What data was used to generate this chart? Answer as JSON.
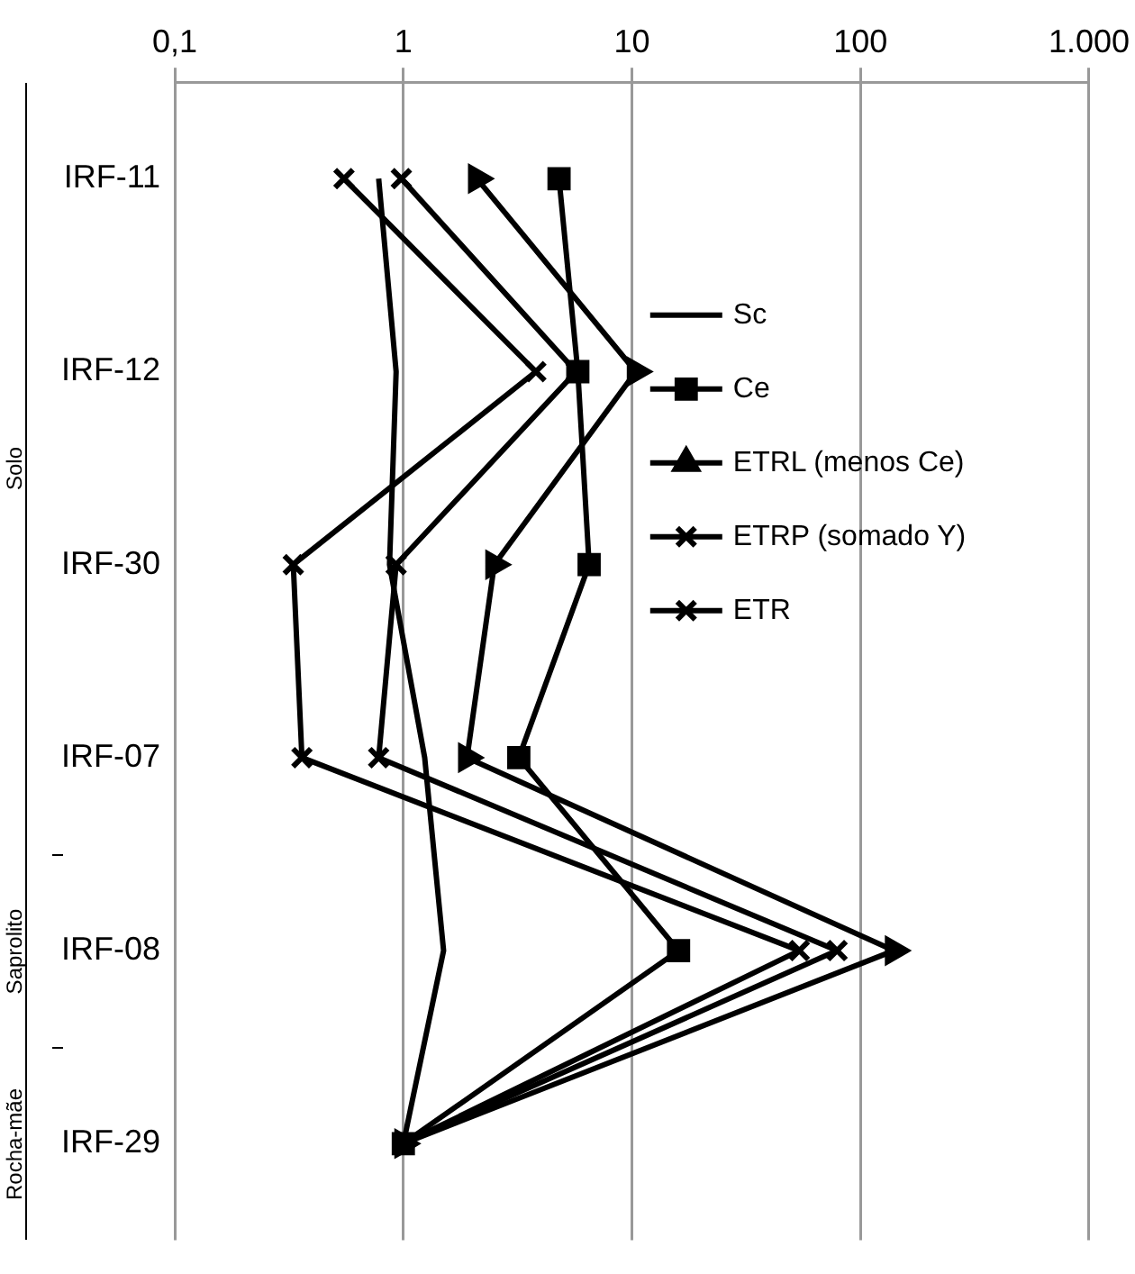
{
  "chart_data": {
    "type": "line",
    "orientation": "horizontal",
    "log": "x",
    "categories": [
      "IRF-11",
      "IRF-12",
      "IRF-30",
      "IRF-07",
      "IRF-08",
      "IRF-29"
    ],
    "xlim": [
      0.1,
      1000
    ],
    "xticks": [
      {
        "value": 0.1,
        "label": "0,1"
      },
      1,
      10,
      100,
      {
        "value": 1000,
        "label": "1.000"
      }
    ],
    "grid": "x",
    "legend": "right",
    "line_style": "solid",
    "series": [
      {
        "name": "Sc",
        "color": "#000000",
        "marker": "none",
        "values": [
          0.78,
          0.93,
          0.87,
          1.24,
          1.5,
          1
        ]
      },
      {
        "name": "Ce",
        "color": "#000000",
        "marker": "square",
        "values": [
          4.8,
          5.8,
          6.5,
          3.2,
          16,
          1
        ]
      },
      {
        "name": "ETRL (menos Ce)",
        "color": "#000000",
        "marker": "triangle",
        "values": [
          2.1,
          10.4,
          2.5,
          1.9,
          140,
          1
        ]
      },
      {
        "name": "ETRP (somado Y)",
        "color": "#000000",
        "marker": "cross",
        "values": [
          0.55,
          3.8,
          0.33,
          0.36,
          54,
          1
        ]
      },
      {
        "name": "ETR",
        "color": "#000000",
        "marker": "cross",
        "values": [
          0.98,
          5.7,
          0.93,
          0.78,
          79,
          1
        ]
      }
    ],
    "annotations": [
      "Solo",
      "Saprolito",
      "Rocha-mãe"
    ]
  }
}
